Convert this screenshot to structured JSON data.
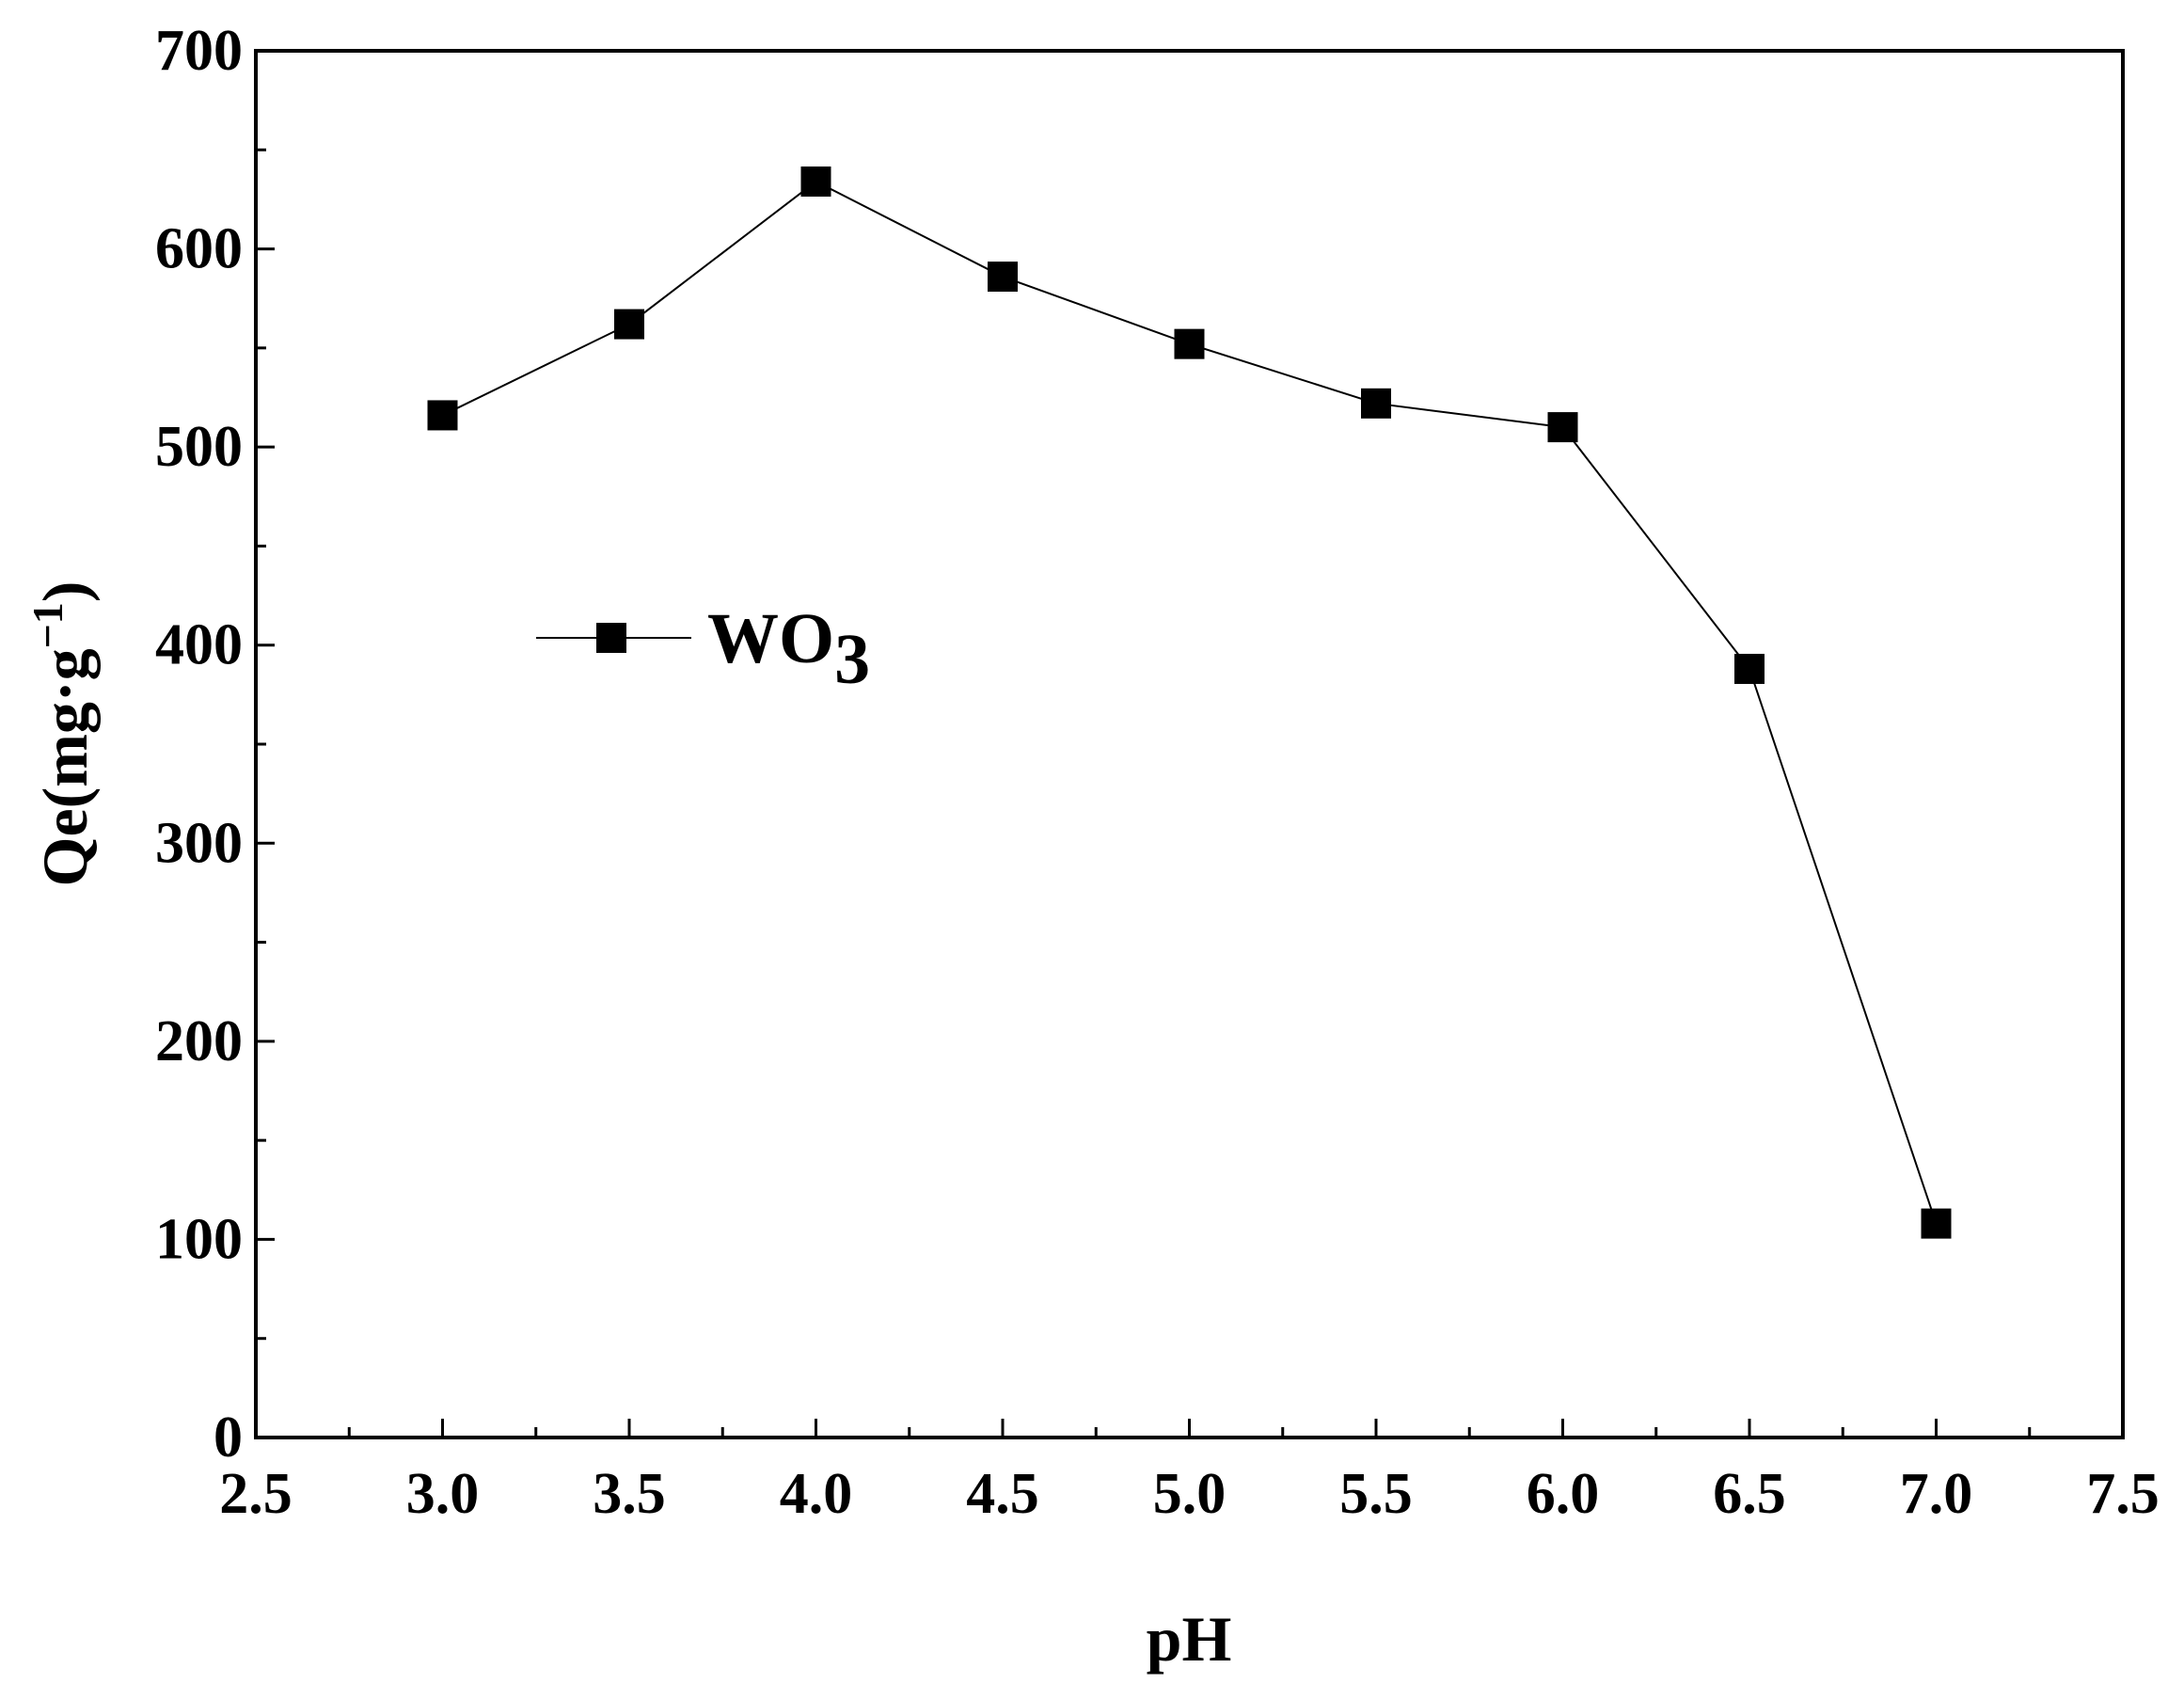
{
  "chart_data": {
    "type": "line",
    "xlabel": "pH",
    "ylabel": "Qe(mg·g",
    "ylabel_superscript": "−1",
    "ylabel_close": ")",
    "xlim": [
      2.5,
      7.5
    ],
    "ylim": [
      0,
      700
    ],
    "x_ticks": [
      "2.5",
      "3.0",
      "3.5",
      "4.0",
      "4.5",
      "5.0",
      "5.5",
      "6.0",
      "6.5",
      "7.0",
      "7.5"
    ],
    "y_ticks": [
      "0",
      "100",
      "200",
      "300",
      "400",
      "500",
      "600",
      "700"
    ],
    "grid": false,
    "legend_position": "middle-left",
    "series": [
      {
        "name": "WO",
        "name_subscript": "3",
        "color": "#000000",
        "marker": "square",
        "x": [
          3.0,
          3.5,
          4.0,
          4.5,
          5.0,
          5.5,
          6.0,
          6.5,
          7.0
        ],
        "y": [
          516,
          562,
          634,
          586,
          552,
          522,
          510,
          388,
          108
        ]
      }
    ]
  }
}
